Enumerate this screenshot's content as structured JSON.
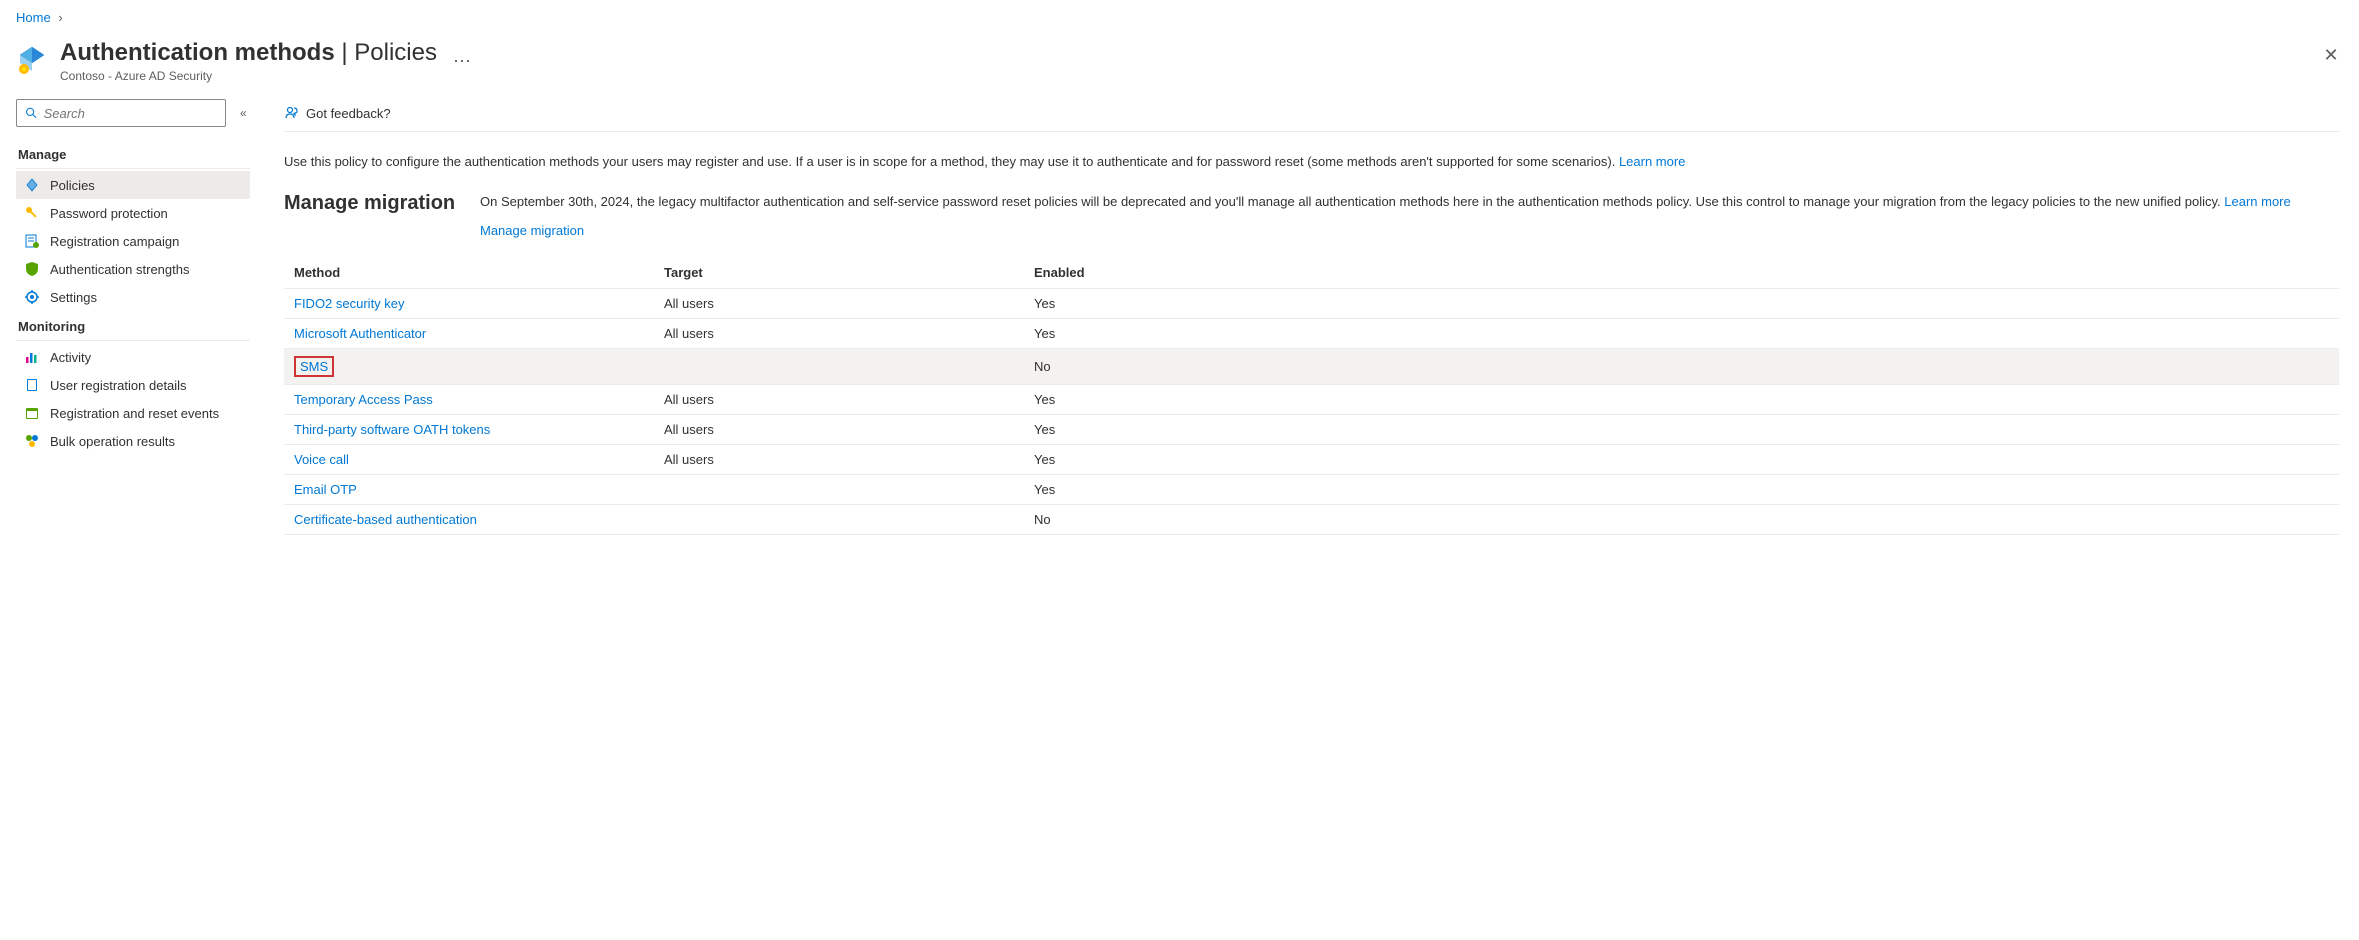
{
  "breadcrumb": {
    "home": "Home"
  },
  "header": {
    "title_bold": "Authentication methods",
    "title_light": "Policies",
    "subtitle": "Contoso - Azure AD Security"
  },
  "search": {
    "placeholder": "Search"
  },
  "nav": {
    "manage_header": "Manage",
    "monitoring_header": "Monitoring",
    "manage_items": [
      {
        "label": "Policies",
        "icon": "diamond",
        "active": true
      },
      {
        "label": "Password protection",
        "icon": "key",
        "active": false
      },
      {
        "label": "Registration campaign",
        "icon": "form",
        "active": false
      },
      {
        "label": "Authentication strengths",
        "icon": "shield",
        "active": false
      },
      {
        "label": "Settings",
        "icon": "gear",
        "active": false
      }
    ],
    "monitoring_items": [
      {
        "label": "Activity",
        "icon": "chart",
        "active": false
      },
      {
        "label": "User registration details",
        "icon": "book",
        "active": false
      },
      {
        "label": "Registration and reset events",
        "icon": "calendar",
        "active": false
      },
      {
        "label": "Bulk operation results",
        "icon": "bulk",
        "active": false
      }
    ]
  },
  "toolbar": {
    "feedback": "Got feedback?"
  },
  "description": {
    "text": "Use this policy to configure the authentication methods your users may register and use. If a user is in scope for a method, they may use it to authenticate and for password reset (some methods aren't supported for some scenarios). ",
    "learn_more": "Learn more"
  },
  "migration": {
    "title": "Manage migration",
    "text": "On September 30th, 2024, the legacy multifactor authentication and self-service password reset policies will be deprecated and you'll manage all authentication methods here in the authentication methods policy. Use this control to manage your migration from the legacy policies to the new unified policy. ",
    "learn_more": "Learn more",
    "manage_link": "Manage migration"
  },
  "table": {
    "columns": {
      "method": "Method",
      "target": "Target",
      "enabled": "Enabled"
    },
    "rows": [
      {
        "method": "FIDO2 security key",
        "target": "All users",
        "enabled": "Yes",
        "highlighted": false,
        "boxed": false
      },
      {
        "method": "Microsoft Authenticator",
        "target": "All users",
        "enabled": "Yes",
        "highlighted": false,
        "boxed": false
      },
      {
        "method": "SMS",
        "target": "",
        "enabled": "No",
        "highlighted": true,
        "boxed": true
      },
      {
        "method": "Temporary Access Pass",
        "target": "All users",
        "enabled": "Yes",
        "highlighted": false,
        "boxed": false
      },
      {
        "method": "Third-party software OATH tokens",
        "target": "All users",
        "enabled": "Yes",
        "highlighted": false,
        "boxed": false
      },
      {
        "method": "Voice call",
        "target": "All users",
        "enabled": "Yes",
        "highlighted": false,
        "boxed": false
      },
      {
        "method": "Email OTP",
        "target": "",
        "enabled": "Yes",
        "highlighted": false,
        "boxed": false
      },
      {
        "method": "Certificate-based authentication",
        "target": "",
        "enabled": "No",
        "highlighted": false,
        "boxed": false
      }
    ]
  },
  "colors": {
    "link": "#0078d4",
    "text": "#323130",
    "muted": "#605e5c",
    "border": "#edebe9",
    "highlight_bg": "#f3f2f1",
    "red_box": "#d13438"
  }
}
